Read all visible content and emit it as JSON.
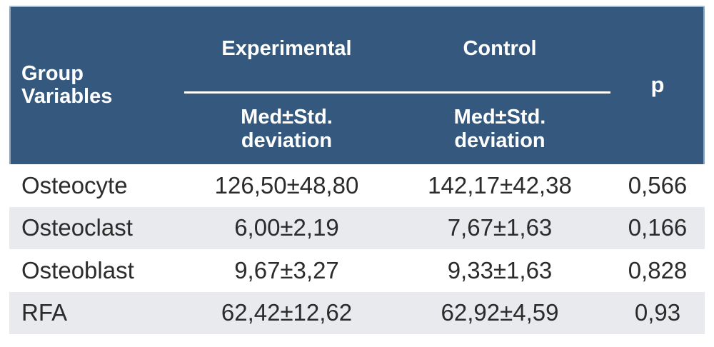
{
  "table": {
    "header": {
      "group_variables": "Group\nVariables",
      "experimental": "Experimental",
      "control": "Control",
      "p": "p",
      "experimental_sub": "Med±Std.\ndeviation",
      "control_sub": "Med±Std.\ndeviation"
    },
    "rows": [
      {
        "variable": "Osteocyte",
        "experimental": "126,50±48,80",
        "control": "142,17±42,38",
        "p": "0,566"
      },
      {
        "variable": "Osteoclast",
        "experimental": "6,00±2,19",
        "control": "7,67±1,63",
        "p": "0,166"
      },
      {
        "variable": "Osteoblast",
        "experimental": "9,67±3,27",
        "control": "9,33±1,63",
        "p": "0,828"
      },
      {
        "variable": "RFA",
        "experimental": "62,42±12,62",
        "control": "62,92±4,59",
        "p": "0,93"
      }
    ],
    "colors": {
      "header_bg": "#35597E",
      "header_edge_highlight": "#B0C8DE",
      "stripe_bg": "#E8EAED",
      "header_text": "#FFFFFF",
      "body_text": "#2B2B2B",
      "divider_line": "#FFFFFF"
    }
  }
}
